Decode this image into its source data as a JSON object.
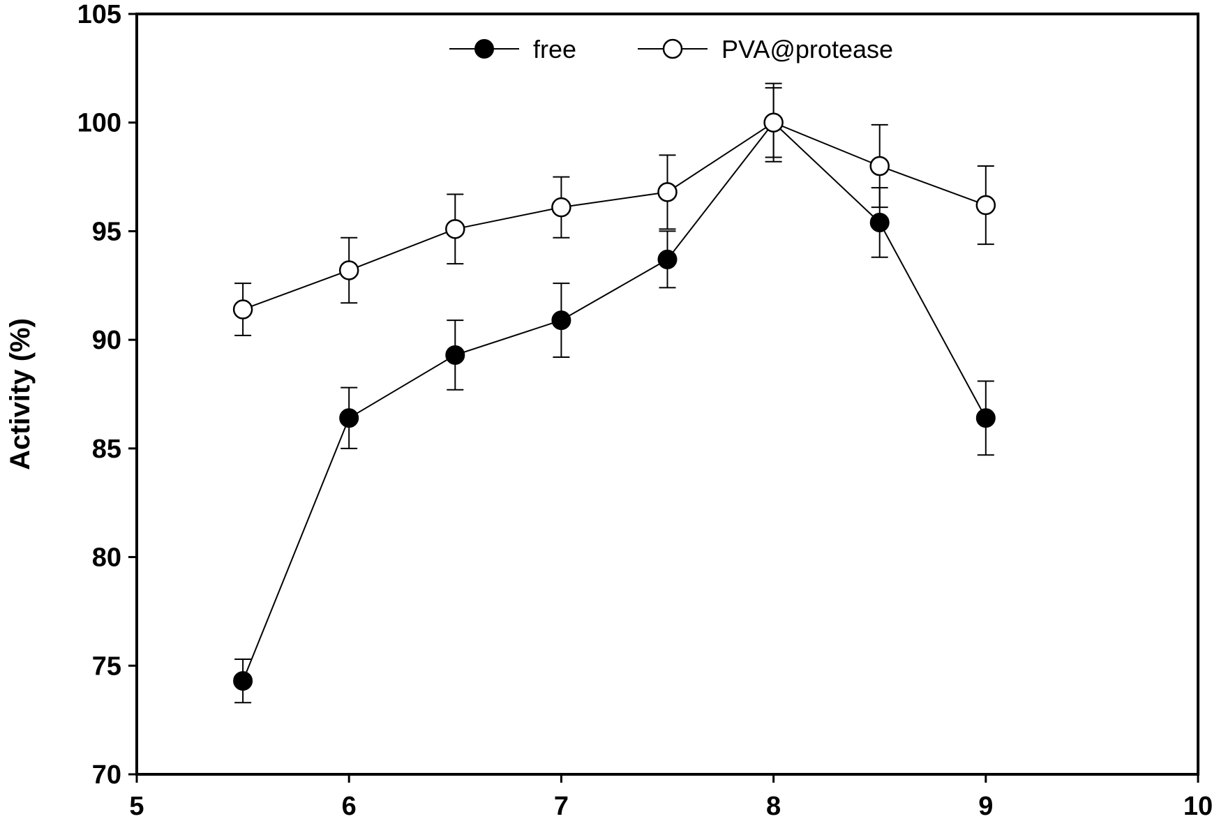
{
  "chart_data": {
    "type": "line",
    "title": "",
    "xlabel": "",
    "ylabel": "Activity (%)",
    "xlim": [
      5,
      10
    ],
    "ylim": [
      70,
      105
    ],
    "xticks": [
      5,
      6,
      7,
      8,
      9,
      10
    ],
    "yticks": [
      70,
      75,
      80,
      85,
      90,
      95,
      100,
      105
    ],
    "xtick_labels": [
      "5",
      "6",
      "7",
      "8",
      "9",
      "10"
    ],
    "ytick_labels": [
      "70",
      "75",
      "80",
      "85",
      "90",
      "95",
      "100",
      "105"
    ],
    "grid": false,
    "legend_position": "top-center",
    "x": [
      5.5,
      6,
      6.5,
      7,
      7.5,
      8,
      8.5,
      9
    ],
    "series": [
      {
        "name": "free",
        "marker": "filled-circle",
        "color": "#000000",
        "values": [
          74.3,
          86.4,
          89.3,
          90.9,
          93.7,
          100,
          95.4,
          86.4
        ],
        "errors": [
          1.0,
          1.4,
          1.6,
          1.7,
          1.3,
          1.6,
          1.6,
          1.7
        ]
      },
      {
        "name": "PVA@protease",
        "marker": "open-circle",
        "color": "#000000",
        "values": [
          91.4,
          93.2,
          95.1,
          96.1,
          96.8,
          100,
          98.0,
          96.2
        ],
        "errors": [
          1.2,
          1.5,
          1.6,
          1.4,
          1.7,
          1.8,
          1.9,
          1.8
        ]
      }
    ]
  }
}
